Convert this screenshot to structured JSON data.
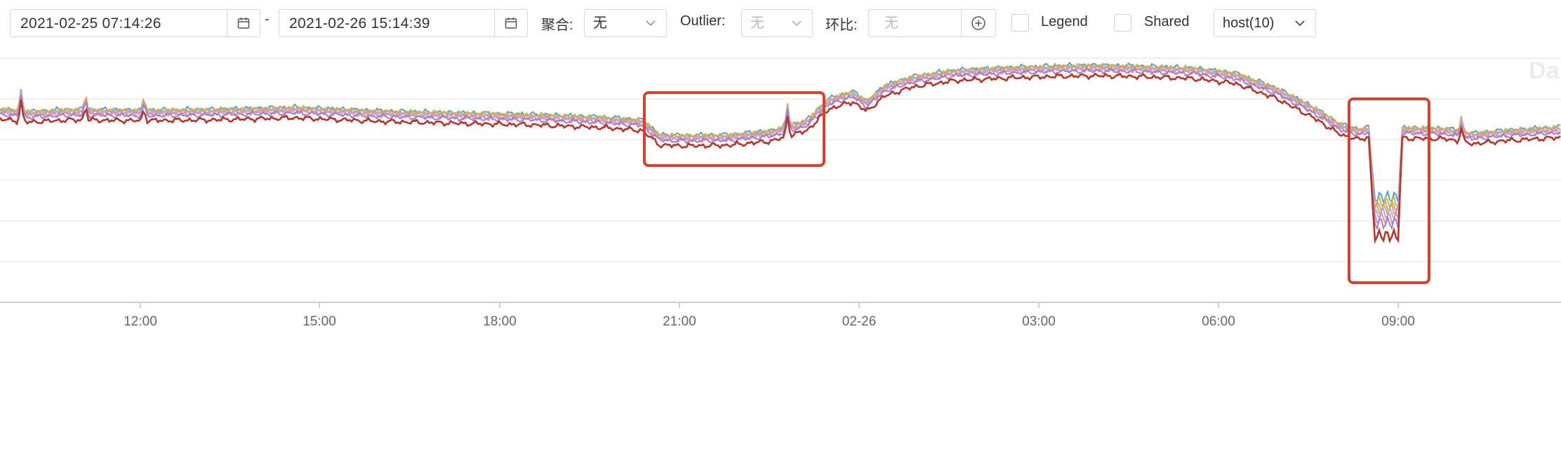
{
  "toolbar": {
    "start_time": "2021-02-25 07:14:26",
    "range_separator": "-",
    "end_time": "2021-02-26 15:14:39",
    "aggregate_label": "聚合:",
    "aggregate_value": "无",
    "outlier_label": "Outlier:",
    "outlier_value": "无",
    "compare_label": "环比:",
    "compare_placeholder": "无",
    "legend_label": "Legend",
    "legend_checked": false,
    "shared_label": "Shared",
    "shared_checked": false,
    "host_select": "host(10)"
  },
  "chart_data": {
    "type": "line",
    "watermark": "Da",
    "x_ticks": [
      "12:00",
      "15:00",
      "18:00",
      "21:00",
      "02-26",
      "03:00",
      "06:00",
      "09:00"
    ],
    "highlight_boxes": 2,
    "series_colors": [
      "#5b9bd5",
      "#a4c55f",
      "#e0a45a",
      "#c9a97a",
      "#b8a8dc",
      "#e58fb5",
      "#9d7fd0",
      "#b8352c"
    ]
  }
}
